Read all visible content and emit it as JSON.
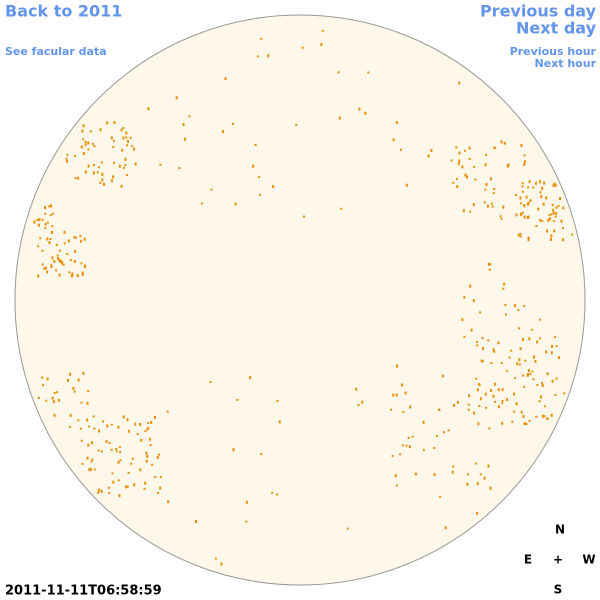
{
  "navigation": {
    "back": "Back to 2011",
    "facular": "See facular data",
    "previous_day": "Previous day",
    "next_day": "Next day",
    "previous_hour": "Previous hour",
    "next_hour": "Next hour"
  },
  "timestamp": "2011-11-11T06:58:59",
  "compass": {
    "north": "N",
    "east": "E",
    "center": "+",
    "west": "W",
    "south": "S"
  }
}
